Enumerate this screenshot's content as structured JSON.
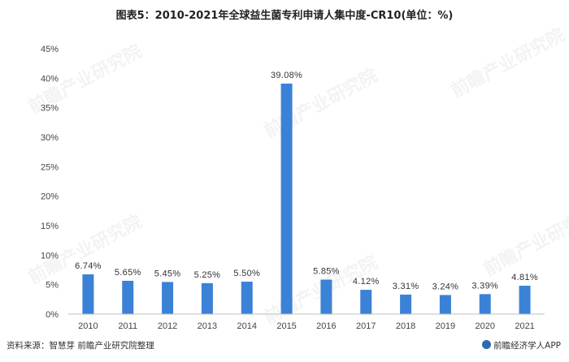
{
  "title": "图表5：2010-2021年全球益生菌专利申请人集中度-CR10(单位：%)",
  "footer": {
    "source": "资料来源：智慧芽 前瞻产业研究院整理",
    "brand": "前瞻经济学人APP"
  },
  "watermark": "前瞻产业研究院",
  "colors": {
    "bar": "#3b82d6",
    "axis": "#bfbfbf"
  },
  "chart_data": {
    "type": "bar",
    "categories": [
      "2010",
      "2011",
      "2012",
      "2013",
      "2014",
      "2015",
      "2016",
      "2017",
      "2018",
      "2019",
      "2020",
      "2021"
    ],
    "values": [
      6.74,
      5.65,
      5.45,
      5.25,
      5.5,
      39.08,
      5.85,
      4.12,
      3.31,
      3.24,
      3.39,
      4.81
    ],
    "data_labels": [
      "6.74%",
      "5.65%",
      "5.45%",
      "5.25%",
      "5.50%",
      "39.08%",
      "5.85%",
      "4.12%",
      "3.31%",
      "3.24%",
      "3.39%",
      "4.81%"
    ],
    "y_ticks": [
      "0%",
      "5%",
      "10%",
      "15%",
      "20%",
      "25%",
      "30%",
      "35%",
      "40%",
      "45%"
    ],
    "ylim": [
      0,
      45
    ],
    "grid": false,
    "legend": "none"
  }
}
